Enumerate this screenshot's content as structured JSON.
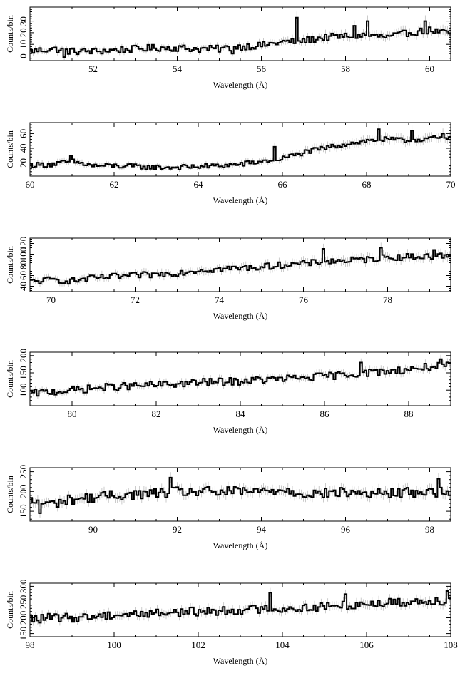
{
  "figure": {
    "panel_count": 6,
    "series_color": "#000000",
    "errorbar_color": "#b5b5b5"
  },
  "chart_data": [
    {
      "type": "line",
      "style": "histogram-step-with-error-bars",
      "xlabel": "Wavelength (Å)",
      "ylabel": "Counts/bin",
      "xlim": [
        50.5,
        60.5
      ],
      "ylim": [
        -4,
        42
      ],
      "xticks": [
        52,
        54,
        56,
        58,
        60
      ],
      "yticks": [
        0,
        10,
        20,
        30
      ],
      "ytick_labels": [
        "0",
        "10",
        "20",
        "30"
      ],
      "anchors": [
        [
          50.5,
          4
        ],
        [
          51,
          6
        ],
        [
          51.5,
          4
        ],
        [
          52,
          4
        ],
        [
          52.5,
          5
        ],
        [
          53,
          6
        ],
        [
          53.5,
          7
        ],
        [
          54,
          7
        ],
        [
          54.5,
          6
        ],
        [
          55,
          6
        ],
        [
          55.5,
          8
        ],
        [
          56,
          9
        ],
        [
          56.5,
          12
        ],
        [
          57,
          13
        ],
        [
          57.5,
          16
        ],
        [
          58,
          17
        ],
        [
          58.5,
          18
        ],
        [
          59,
          16
        ],
        [
          59.5,
          20
        ],
        [
          60,
          22
        ],
        [
          60.5,
          19
        ]
      ],
      "spikes": [
        [
          56.85,
          33
        ],
        [
          58.55,
          30
        ],
        [
          59.9,
          30
        ],
        [
          58.2,
          26
        ],
        [
          59.35,
          22
        ],
        [
          55.3,
          2
        ],
        [
          51.3,
          -1
        ]
      ],
      "noise": 3.0
    },
    {
      "type": "line",
      "style": "histogram-step-with-error-bars",
      "xlabel": "Wavelength (Å)",
      "ylabel": "Counts/bin",
      "xlim": [
        60,
        70
      ],
      "ylim": [
        2,
        75
      ],
      "xticks": [
        60,
        62,
        64,
        66,
        68,
        70
      ],
      "yticks": [
        20,
        40,
        60
      ],
      "ytick_labels": [
        "20",
        "40",
        "60"
      ],
      "anchors": [
        [
          60,
          17
        ],
        [
          60.5,
          18
        ],
        [
          61,
          22
        ],
        [
          61.5,
          16
        ],
        [
          62,
          16
        ],
        [
          62.5,
          15
        ],
        [
          63,
          14
        ],
        [
          63.5,
          14
        ],
        [
          64,
          15
        ],
        [
          64.5,
          16
        ],
        [
          65,
          18
        ],
        [
          65.5,
          22
        ],
        [
          66,
          26
        ],
        [
          66.5,
          34
        ],
        [
          67,
          40
        ],
        [
          67.5,
          46
        ],
        [
          68,
          50
        ],
        [
          68.5,
          52
        ],
        [
          69,
          50
        ],
        [
          69.5,
          54
        ],
        [
          70,
          52
        ]
      ],
      "spikes": [
        [
          60.95,
          30
        ],
        [
          65.8,
          42
        ],
        [
          68.3,
          66
        ],
        [
          69.1,
          64
        ],
        [
          69.8,
          60
        ]
      ],
      "noise": 3.5
    },
    {
      "type": "line",
      "style": "histogram-step-with-error-bars",
      "xlabel": "Wavelength (Å)",
      "ylabel": "Counts/bin",
      "xlim": [
        69.5,
        79.5
      ],
      "ylim": [
        30,
        130
      ],
      "xticks": [
        70,
        72,
        74,
        76,
        78
      ],
      "yticks": [
        40,
        60,
        80,
        100,
        120
      ],
      "ytick_labels": [
        "40",
        "60",
        "80",
        "100",
        "120"
      ],
      "anchors": [
        [
          69.5,
          48
        ],
        [
          70,
          52
        ],
        [
          70.5,
          50
        ],
        [
          71,
          55
        ],
        [
          71.5,
          58
        ],
        [
          72,
          60
        ],
        [
          72.5,
          62
        ],
        [
          73,
          65
        ],
        [
          73.5,
          70
        ],
        [
          74,
          72
        ],
        [
          74.5,
          74
        ],
        [
          75,
          76
        ],
        [
          75.5,
          80
        ],
        [
          76,
          82
        ],
        [
          76.5,
          86
        ],
        [
          77,
          88
        ],
        [
          77.5,
          90
        ],
        [
          78,
          94
        ],
        [
          78.5,
          95
        ],
        [
          79,
          96
        ],
        [
          79.5,
          98
        ]
      ],
      "spikes": [
        [
          76.45,
          110
        ],
        [
          77.85,
          112
        ],
        [
          79.1,
          108
        ]
      ],
      "noise": 6
    },
    {
      "type": "line",
      "style": "histogram-step-with-error-bars",
      "xlabel": "Wavelength (Å)",
      "ylabel": "Counts/bin",
      "xlim": [
        79,
        89
      ],
      "ylim": [
        55,
        210
      ],
      "xticks": [
        80,
        82,
        84,
        86,
        88
      ],
      "yticks": [
        100,
        150,
        200
      ],
      "ytick_labels": [
        "100",
        "150",
        "200"
      ],
      "anchors": [
        [
          79,
          90
        ],
        [
          79.5,
          95
        ],
        [
          80,
          100
        ],
        [
          80.5,
          105
        ],
        [
          81,
          110
        ],
        [
          81.5,
          112
        ],
        [
          82,
          115
        ],
        [
          82.5,
          118
        ],
        [
          83,
          122
        ],
        [
          83.5,
          124
        ],
        [
          84,
          126
        ],
        [
          84.5,
          130
        ],
        [
          85,
          132
        ],
        [
          85.5,
          136
        ],
        [
          86,
          140
        ],
        [
          86.5,
          145
        ],
        [
          87,
          150
        ],
        [
          87.5,
          155
        ],
        [
          88,
          160
        ],
        [
          88.5,
          168
        ],
        [
          89,
          170
        ]
      ],
      "spikes": [
        [
          88.75,
          190
        ],
        [
          86.85,
          180
        ]
      ],
      "noise": 11
    },
    {
      "type": "line",
      "style": "histogram-step-with-error-bars",
      "xlabel": "Wavelength (Å)",
      "ylabel": "Counts/bin",
      "xlim": [
        88.5,
        98.5
      ],
      "ylim": [
        125,
        260
      ],
      "xticks": [
        90,
        92,
        94,
        96,
        98
      ],
      "yticks": [
        150,
        200,
        250
      ],
      "ytick_labels": [
        "150",
        "200",
        "250"
      ],
      "anchors": [
        [
          88.5,
          175
        ],
        [
          89,
          168
        ],
        [
          89.5,
          180
        ],
        [
          90,
          185
        ],
        [
          90.5,
          190
        ],
        [
          91,
          192
        ],
        [
          91.5,
          195
        ],
        [
          92,
          198
        ],
        [
          92.5,
          200
        ],
        [
          93,
          198
        ],
        [
          93.5,
          200
        ],
        [
          94,
          200
        ],
        [
          94.5,
          205
        ],
        [
          95,
          195
        ],
        [
          95.5,
          195
        ],
        [
          96,
          198
        ],
        [
          96.5,
          195
        ],
        [
          97,
          195
        ],
        [
          97.5,
          198
        ],
        [
          98,
          200
        ],
        [
          98.5,
          195
        ]
      ],
      "spikes": [
        [
          91.85,
          235
        ],
        [
          98.2,
          232
        ],
        [
          88.75,
          145
        ]
      ],
      "noise": 13
    },
    {
      "type": "line",
      "style": "histogram-step-with-error-bars",
      "xlabel": "Wavelength (Å)",
      "ylabel": "Counts/bin",
      "xlim": [
        98,
        108
      ],
      "ylim": [
        140,
        310
      ],
      "xticks": [
        98,
        100,
        102,
        104,
        106,
        108
      ],
      "yticks": [
        150,
        200,
        250,
        300
      ],
      "ytick_labels": [
        "150",
        "200",
        "250",
        "300"
      ],
      "anchors": [
        [
          98,
          195
        ],
        [
          98.5,
          200
        ],
        [
          99,
          200
        ],
        [
          99.5,
          205
        ],
        [
          100,
          210
        ],
        [
          100.5,
          212
        ],
        [
          101,
          215
        ],
        [
          101.5,
          218
        ],
        [
          102,
          220
        ],
        [
          102.5,
          222
        ],
        [
          103,
          225
        ],
        [
          103.5,
          228
        ],
        [
          104,
          228
        ],
        [
          104.5,
          232
        ],
        [
          105,
          235
        ],
        [
          105.5,
          240
        ],
        [
          106,
          245
        ],
        [
          106.5,
          248
        ],
        [
          107,
          250
        ],
        [
          107.5,
          255
        ],
        [
          108,
          255
        ]
      ],
      "spikes": [
        [
          107.9,
          285
        ],
        [
          103.7,
          280
        ],
        [
          105.5,
          275
        ]
      ],
      "noise": 14
    }
  ]
}
